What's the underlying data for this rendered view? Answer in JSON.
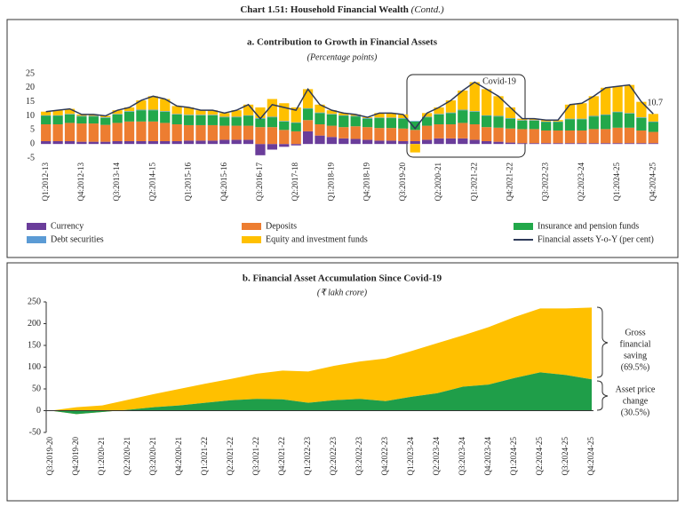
{
  "header": {
    "title": "Chart 1.51: Household Financial Wealth",
    "title_note": "(Contd.)"
  },
  "chart_data": [
    {
      "type": "bar",
      "stacked": true,
      "title": "a. Contribution to Growth in Financial Assets",
      "subtitle": "(Percentage points)",
      "categories": [
        "Q1:2012-13",
        null,
        null,
        "Q4:2012-13",
        null,
        null,
        "Q3:2013-14",
        null,
        null,
        "Q2:2014-15",
        null,
        null,
        "Q1:2015-16",
        null,
        null,
        "Q4:2015-16",
        null,
        null,
        "Q3:2016-17",
        null,
        null,
        "Q2:2017-18",
        null,
        null,
        "Q1:2018-19",
        null,
        null,
        "Q4:2018-19",
        null,
        null,
        "Q3:2019-20",
        null,
        null,
        "Q2:2020-21",
        null,
        null,
        "Q1:2021-22",
        null,
        null,
        "Q4:2021-22",
        null,
        null,
        "Q3:2022-23",
        null,
        null,
        "Q2:2023-24",
        null,
        null,
        "Q1:2024-25",
        null,
        null,
        "Q4:2024-25"
      ],
      "series": [
        {
          "name": "Currency",
          "color": "#6a3d9a",
          "values": [
            1,
            1,
            1,
            0.8,
            0.8,
            0.8,
            1,
            1,
            1,
            1,
            1,
            1,
            1.2,
            1.2,
            1.2,
            1.5,
            1.5,
            1.5,
            -4,
            -2,
            -1,
            -0.5,
            4.5,
            3,
            2.5,
            2,
            1.8,
            1.5,
            1.2,
            1.2,
            1,
            1,
            1.5,
            2,
            2,
            2,
            1.5,
            1,
            0.8,
            0.5,
            0.3,
            0.3,
            0.3,
            0.3,
            0.3,
            0.3,
            0.3,
            0.3,
            0.3,
            0.3,
            0.3,
            0.3
          ]
        },
        {
          "name": "Deposits",
          "color": "#ed7d31",
          "values": [
            6,
            6,
            6.5,
            6.5,
            6.5,
            6,
            6.5,
            7,
            7,
            7,
            6.5,
            6,
            5.5,
            5.5,
            5.5,
            5,
            5,
            5,
            6,
            6,
            5,
            4.5,
            4,
            4,
            4,
            4,
            4.5,
            4.5,
            4.5,
            4.5,
            4.5,
            4,
            5,
            5,
            5,
            5.5,
            5.5,
            5,
            5,
            5,
            5,
            5,
            4.5,
            4.5,
            4.5,
            4.5,
            5,
            5,
            5.5,
            5.5,
            4.5,
            4
          ]
        },
        {
          "name": "Insurance and pension funds",
          "color": "#22a84a",
          "values": [
            3,
            3,
            3,
            2.5,
            2.5,
            2.5,
            3,
            3.5,
            4,
            4,
            4,
            3.5,
            3.5,
            3.5,
            3.5,
            3,
            3,
            3.5,
            3,
            3.5,
            3,
            3,
            4,
            4,
            4,
            4,
            3.5,
            3,
            3.5,
            3.5,
            3.5,
            3,
            3,
            3.5,
            4,
            4.5,
            4.5,
            4,
            4,
            3.5,
            3,
            3,
            3,
            3,
            4,
            4,
            4.5,
            5,
            5.5,
            5,
            4.5,
            3.5
          ]
        },
        {
          "name": "Debt securities",
          "color": "#5b9bd5",
          "values": [
            0.2,
            0.2,
            0.2,
            0.2,
            0.2,
            0.2,
            0.2,
            0.2,
            0.2,
            0.2,
            0.2,
            0.2,
            0.2,
            0.2,
            0.2,
            0.2,
            0.2,
            0.2,
            0.2,
            0.2,
            0.2,
            0.2,
            0.2,
            0.2,
            0.2,
            0.2,
            0.2,
            0.2,
            0.2,
            0.2,
            0.2,
            0.2,
            0.2,
            0.2,
            0.2,
            0.2,
            0.2,
            0.2,
            0.2,
            0.2,
            0.2,
            0.2,
            0.2,
            0.2,
            0.2,
            0.2,
            0.2,
            0.2,
            0.2,
            0.2,
            0.2,
            0.2
          ]
        },
        {
          "name": "Equity and investment funds",
          "color": "#ffc000",
          "values": [
            1.3,
            1.8,
            1.8,
            0.5,
            0.5,
            0.5,
            1.3,
            1.3,
            3.3,
            4.8,
            4.3,
            2.8,
            2.6,
            1.6,
            1.6,
            1.3,
            2.3,
            3.8,
            3.8,
            6.3,
            6.3,
            5.3,
            6.8,
            2.8,
            1.3,
            0.8,
            0.5,
            0.3,
            1.6,
            1.6,
            1.3,
            -3,
            1.3,
            2.3,
            4.3,
            6.8,
            10.3,
            9.3,
            7,
            3.8,
            0.5,
            0.5,
            0.5,
            0.5,
            5,
            5.5,
            7,
            9.5,
            9,
            10,
            5.5,
            2.7
          ]
        }
      ],
      "line": {
        "name": "Financial assets Y-o-Y (per cent)",
        "color": "#2e3a59",
        "values": [
          11.5,
          12,
          12.5,
          10.5,
          10.5,
          10,
          12,
          13,
          15.5,
          17,
          16,
          13.5,
          13,
          12,
          12,
          11,
          12,
          14,
          9,
          14,
          13,
          12,
          19.5,
          14,
          12,
          11,
          10.5,
          9.5,
          11,
          11,
          10.5,
          5.5,
          11,
          13,
          15.5,
          19,
          22,
          19.5,
          17,
          13,
          9,
          9,
          8.5,
          8.5,
          14,
          14.5,
          17,
          20,
          20.5,
          21,
          15,
          10.7
        ]
      },
      "annotation": "Covid-19",
      "ylim": [
        -5,
        25
      ],
      "yticks": [
        -5,
        0,
        5,
        10,
        15,
        20,
        25
      ],
      "grid": false
    },
    {
      "type": "area",
      "stacked": true,
      "title": "b. Financial Asset Accumulation Since Covid-19",
      "subtitle": "(₹ lakh crore)",
      "categories": [
        "Q3:2019-20",
        "Q4:2019-20",
        "Q1:2020-21",
        "Q2:2020-21",
        "Q3:2020-21",
        "Q4:2020-21",
        "Q1:2021-22",
        "Q2:2021-22",
        "Q3:2021-22",
        "Q4:2021-22",
        "Q1:2022-23",
        "Q2:2022-23",
        "Q3:2022-23",
        "Q4:2022-23",
        "Q1:2023-24",
        "Q2:2023-24",
        "Q3:2023-24",
        "Q4:2023-24",
        "Q1:2024-25",
        "Q2:2024-25",
        "Q3:2024-25",
        "Q4:2024-25"
      ],
      "series": [
        {
          "name": "Asset price change",
          "color": "#1f9e49",
          "values": [
            0,
            -8,
            -3,
            2,
            8,
            12,
            18,
            24,
            27,
            26,
            18,
            24,
            27,
            22,
            32,
            40,
            55,
            60,
            75,
            88,
            82,
            72
          ]
        },
        {
          "name": "Gross financial saving",
          "color": "#ffc000",
          "values": [
            0,
            16,
            15,
            23,
            30,
            38,
            44,
            49,
            58,
            66,
            72,
            79,
            86,
            98,
            105,
            115,
            118,
            132,
            140,
            147,
            153,
            165
          ]
        }
      ],
      "annotations": [
        {
          "lines": [
            "Gross",
            "financial",
            "saving",
            "(69.5%)"
          ]
        },
        {
          "lines": [
            "Asset price",
            "change",
            "(30.5%)"
          ]
        }
      ],
      "ylim": [
        -50,
        250
      ],
      "yticks": [
        -50,
        0,
        50,
        100,
        150,
        200,
        250
      ],
      "grid": false
    }
  ]
}
